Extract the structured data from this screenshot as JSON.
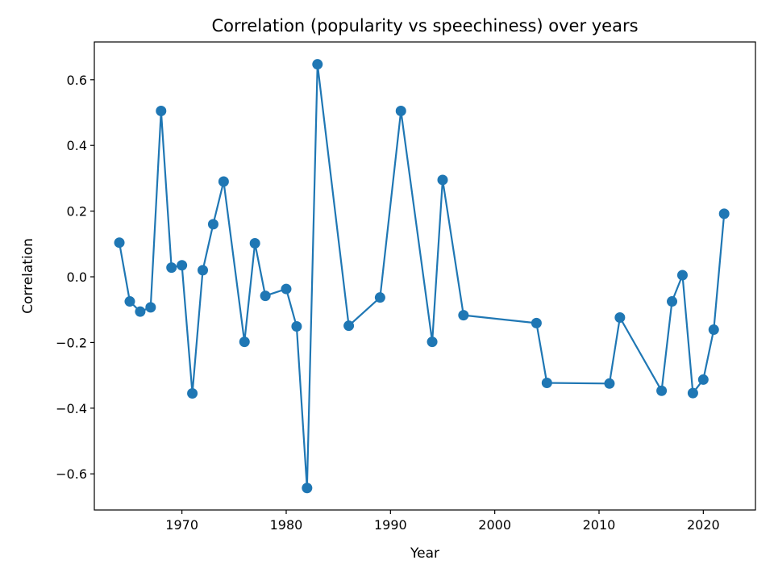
{
  "chart_data": {
    "type": "line",
    "title": "Correlation (popularity vs speechiness) over years",
    "xlabel": "Year",
    "ylabel": "Correlation",
    "xlim": [
      1961.6,
      2025.0
    ],
    "ylim": [
      -0.71,
      0.715
    ],
    "xticks": [
      1970,
      1980,
      1990,
      2000,
      2010,
      2020
    ],
    "yticks": [
      -0.6,
      -0.4,
      -0.2,
      0.0,
      0.2,
      0.4,
      0.6
    ],
    "ytick_labels": [
      "−0.6",
      "−0.4",
      "−0.2",
      "0.0",
      "0.2",
      "0.4",
      "0.6"
    ],
    "grid": false,
    "marker": "circle",
    "series": [
      {
        "color": "#1f77b4",
        "x": [
          1964,
          1965,
          1966,
          1967,
          1968,
          1969,
          1970,
          1971,
          1972,
          1973,
          1974,
          1976,
          1977,
          1978,
          1980,
          1981,
          1982,
          1983,
          1986,
          1989,
          1991,
          1994,
          1995,
          1997,
          2004,
          2005,
          2011,
          2012,
          2016,
          2017,
          2018,
          2019,
          2020,
          2021,
          2022
        ],
        "y": [
          0.104,
          -0.075,
          -0.106,
          -0.093,
          0.505,
          0.028,
          0.035,
          -0.355,
          0.02,
          0.16,
          0.29,
          -0.198,
          0.102,
          -0.058,
          -0.037,
          -0.151,
          -0.643,
          0.647,
          -0.149,
          -0.063,
          0.505,
          -0.198,
          0.295,
          -0.117,
          -0.141,
          -0.323,
          -0.325,
          -0.124,
          -0.347,
          -0.075,
          0.005,
          -0.354,
          -0.313,
          -0.161,
          0.192
        ]
      }
    ]
  }
}
